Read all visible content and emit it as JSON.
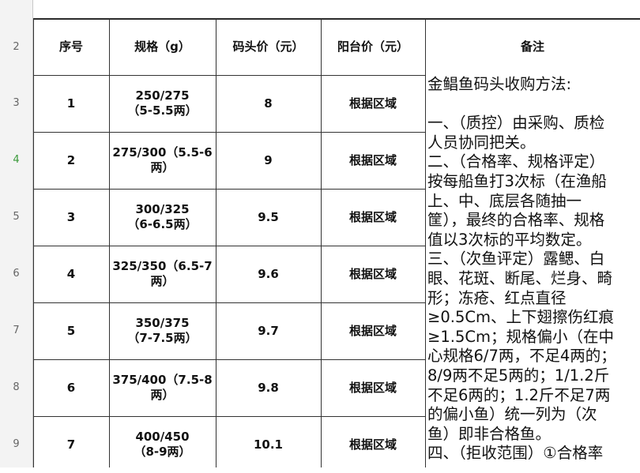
{
  "row_headers": [
    "2",
    "3",
    "4",
    "5",
    "6",
    "7",
    "8",
    "9"
  ],
  "selected_row": "4",
  "headers": {
    "index": "序号",
    "spec": "规格（g）",
    "dock_price": "码头价（元）",
    "balcony_price": "阳台价（元）",
    "notes": "备注"
  },
  "rows": [
    {
      "index": "1",
      "spec": [
        "250/275",
        "（5-5.5两）"
      ],
      "dock_price": "8",
      "balcony_price": "根据区域"
    },
    {
      "index": "2",
      "spec": [
        "275/300（5.5-6",
        "两）"
      ],
      "dock_price": "9",
      "balcony_price": "根据区域"
    },
    {
      "index": "3",
      "spec": [
        "300/325",
        "（6-6.5两）"
      ],
      "dock_price": "9.5",
      "balcony_price": "根据区域"
    },
    {
      "index": "4",
      "spec": [
        "325/350（6.5-7",
        "两）"
      ],
      "dock_price": "9.6",
      "balcony_price": "根据区域"
    },
    {
      "index": "5",
      "spec": [
        "350/375",
        "（7-7.5两）"
      ],
      "dock_price": "9.7",
      "balcony_price": "根据区域"
    },
    {
      "index": "6",
      "spec": [
        "375/400（7.5-8",
        "两）"
      ],
      "dock_price": "9.8",
      "balcony_price": "根据区域"
    },
    {
      "index": "7",
      "spec": [
        "400/450",
        "（8-9两）"
      ],
      "dock_price": "10.1",
      "balcony_price": "根据区域"
    }
  ],
  "notes_lines": [
    "金鲳鱼码头收购方法:",
    "",
    "一、（质控）由采购、质检",
    "人员协同把关。",
    "二、（合格率、规格评定）",
    "按每船鱼打3次标（在渔船",
    "上、中、底层各随抽一",
    "筐），最终的合格率、规格",
    "值以3次标的平均数定。",
    "三、（次鱼评定）露鳃、白",
    "眼、花斑、断尾、烂身、畸",
    "形；冻疮、红点直径",
    "≥0.5Cm、上下翅擦伤红痕",
    "≥1.5Cm；规格偏小（在中",
    "心规格6/7两，不足4两的；",
    "8/9两不足5两的；1/1.2斤",
    "不足6两的；1.2斤不足7两",
    "的偏小鱼）统一列为（次",
    "鱼）即非合格鱼。",
    "四、（拒收范围）①合格率"
  ]
}
